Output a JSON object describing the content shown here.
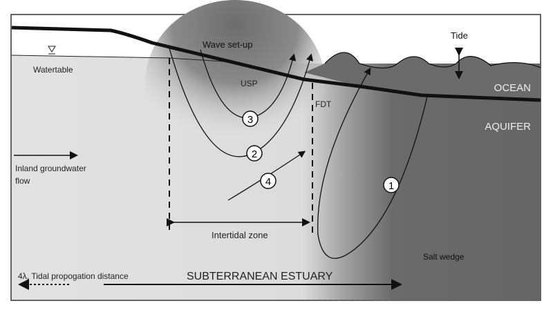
{
  "labels": {
    "wave_setup": "Wave set-up",
    "tide": "Tide",
    "watertable": "Watertable",
    "usp": "USP",
    "fdt": "FDT",
    "ocean": "OCEAN",
    "aquifer": "AQUIFER",
    "inland_flow_line1": "Inland groundwater",
    "inland_flow_line2": "flow",
    "intertidal_zone": "Intertidal zone",
    "salt_wedge": "Salt wedge",
    "tidal_distance": "4λ, Tidal propogation distance",
    "estuary": "SUBTERRANEAN ESTUARY"
  },
  "flowpaths": [
    "1",
    "2",
    "3",
    "4"
  ],
  "colors": {
    "ocean": "#6b6b6b",
    "aquifer_inland": "#dedede",
    "line": "#111111"
  }
}
